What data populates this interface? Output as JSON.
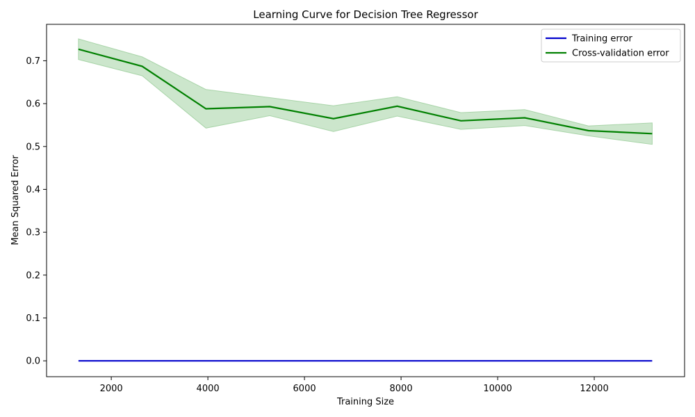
{
  "chart_data": {
    "type": "line",
    "title": "Learning Curve for Decision Tree Regressor",
    "xlabel": "Training Size",
    "ylabel": "Mean Squared Error",
    "xlim": [
      660,
      13870
    ],
    "ylim": [
      -0.037,
      0.785
    ],
    "x_ticks": [
      2000,
      4000,
      6000,
      8000,
      10000,
      12000
    ],
    "y_ticks": [
      0.0,
      0.1,
      0.2,
      0.3,
      0.4,
      0.5,
      0.6,
      0.7
    ],
    "x": [
      1320,
      2640,
      3960,
      5280,
      6600,
      7920,
      9240,
      10560,
      11880,
      13200
    ],
    "legend_position": "top-right",
    "grid": false,
    "series": [
      {
        "name": "Training error",
        "color": "#0000cc",
        "values": [
          0.0,
          0.0,
          0.0,
          0.0,
          0.0,
          0.0,
          0.0,
          0.0,
          0.0,
          0.0
        ]
      },
      {
        "name": "Cross-validation error",
        "color": "#008000",
        "band_color": "#cce6cc",
        "values": [
          0.727,
          0.687,
          0.588,
          0.593,
          0.565,
          0.594,
          0.56,
          0.567,
          0.537,
          0.53
        ],
        "lower": [
          0.703,
          0.665,
          0.543,
          0.572,
          0.535,
          0.571,
          0.54,
          0.549,
          0.525,
          0.505
        ],
        "upper": [
          0.751,
          0.709,
          0.633,
          0.614,
          0.595,
          0.616,
          0.579,
          0.586,
          0.548,
          0.555
        ]
      }
    ]
  }
}
